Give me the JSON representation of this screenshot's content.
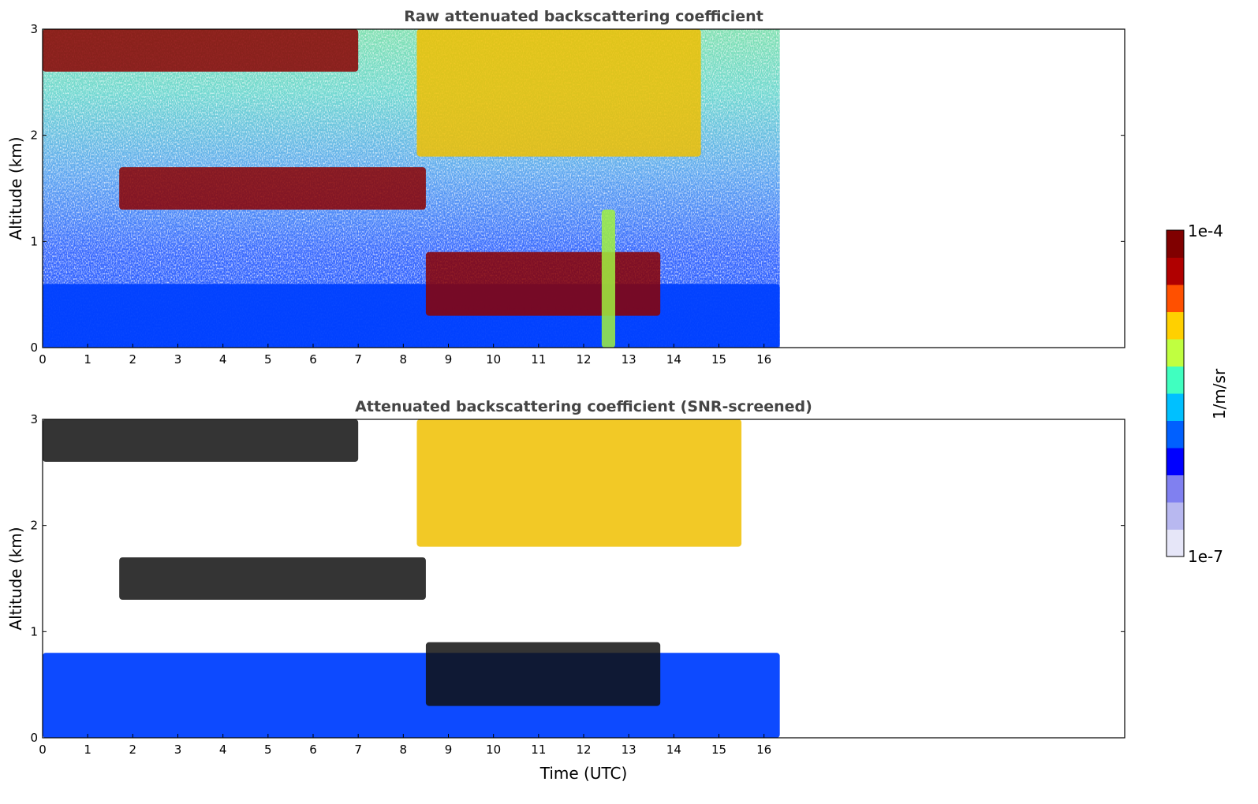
{
  "chart_data": [
    {
      "type": "heatmap",
      "title": "Raw attenuated backscattering coefficient",
      "xlabel": "",
      "ylabel": "Altitude (km)",
      "xlim": [
        0,
        24
      ],
      "ylim": [
        0,
        3
      ],
      "xticks": [
        0,
        1,
        2,
        3,
        4,
        5,
        6,
        7,
        8,
        9,
        10,
        11,
        12,
        13,
        14,
        15,
        16
      ],
      "yticks": [
        0,
        1,
        2,
        3
      ],
      "data_extent_x": [
        0,
        16.35
      ],
      "features": [
        {
          "name": "boundary layer aerosol",
          "x": [
            0,
            16.35
          ],
          "y": [
            0,
            0.6
          ],
          "level": "blue"
        },
        {
          "name": "cloud layer",
          "x": [
            1.7,
            8.5
          ],
          "y": [
            1.3,
            1.7
          ],
          "level": "dark red"
        },
        {
          "name": "upper cloud",
          "x": [
            0,
            7.0
          ],
          "y": [
            2.6,
            3.0
          ],
          "level": "dark red"
        },
        {
          "name": "low clouds",
          "x": [
            8.5,
            13.7
          ],
          "y": [
            0.3,
            0.9
          ],
          "level": "dark red"
        },
        {
          "name": "fall streaks",
          "x": [
            8.3,
            14.6
          ],
          "y": [
            1.8,
            3.0
          ],
          "level": "yellow-orange"
        },
        {
          "name": "precipitation column",
          "x": [
            12.4,
            12.7
          ],
          "y": [
            0,
            1.3
          ],
          "level": "green-yellow"
        }
      ]
    },
    {
      "type": "heatmap",
      "title": "Attenuated backscattering coefficient (SNR-screened)",
      "xlabel": "Time (UTC)",
      "ylabel": "Altitude (km)",
      "xlim": [
        0,
        24
      ],
      "ylim": [
        0,
        3
      ],
      "xticks": [
        0,
        1,
        2,
        3,
        4,
        5,
        6,
        7,
        8,
        9,
        10,
        11,
        12,
        13,
        14,
        15,
        16
      ],
      "yticks": [
        0,
        1,
        2,
        3
      ],
      "data_extent_x": [
        0,
        16.35
      ],
      "features": [
        {
          "name": "boundary layer aerosol",
          "x": [
            0,
            16.35
          ],
          "y": [
            0,
            0.8
          ],
          "level": "blue"
        },
        {
          "name": "cloud layer",
          "x": [
            1.7,
            8.5
          ],
          "y": [
            1.3,
            1.7
          ],
          "level": "black"
        },
        {
          "name": "upper cloud",
          "x": [
            0,
            7.0
          ],
          "y": [
            2.6,
            3.0
          ],
          "level": "black"
        },
        {
          "name": "low clouds",
          "x": [
            8.5,
            13.7
          ],
          "y": [
            0.3,
            0.9
          ],
          "level": "black"
        },
        {
          "name": "fall streaks",
          "x": [
            8.3,
            15.5
          ],
          "y": [
            1.8,
            3.0
          ],
          "level": "yellow-orange"
        }
      ]
    }
  ],
  "colorbar": {
    "max_label": "1e-4",
    "min_label": "1e-7",
    "unit_label": "1/m/sr",
    "scale": "log",
    "colormap": "jet",
    "colors": [
      "#e6e6f8",
      "#b8b8f0",
      "#8080f0",
      "#0000ff",
      "#0060ff",
      "#00c0ff",
      "#40ffc0",
      "#c0ff40",
      "#ffd000",
      "#ff5000",
      "#b00000",
      "#800000"
    ]
  }
}
